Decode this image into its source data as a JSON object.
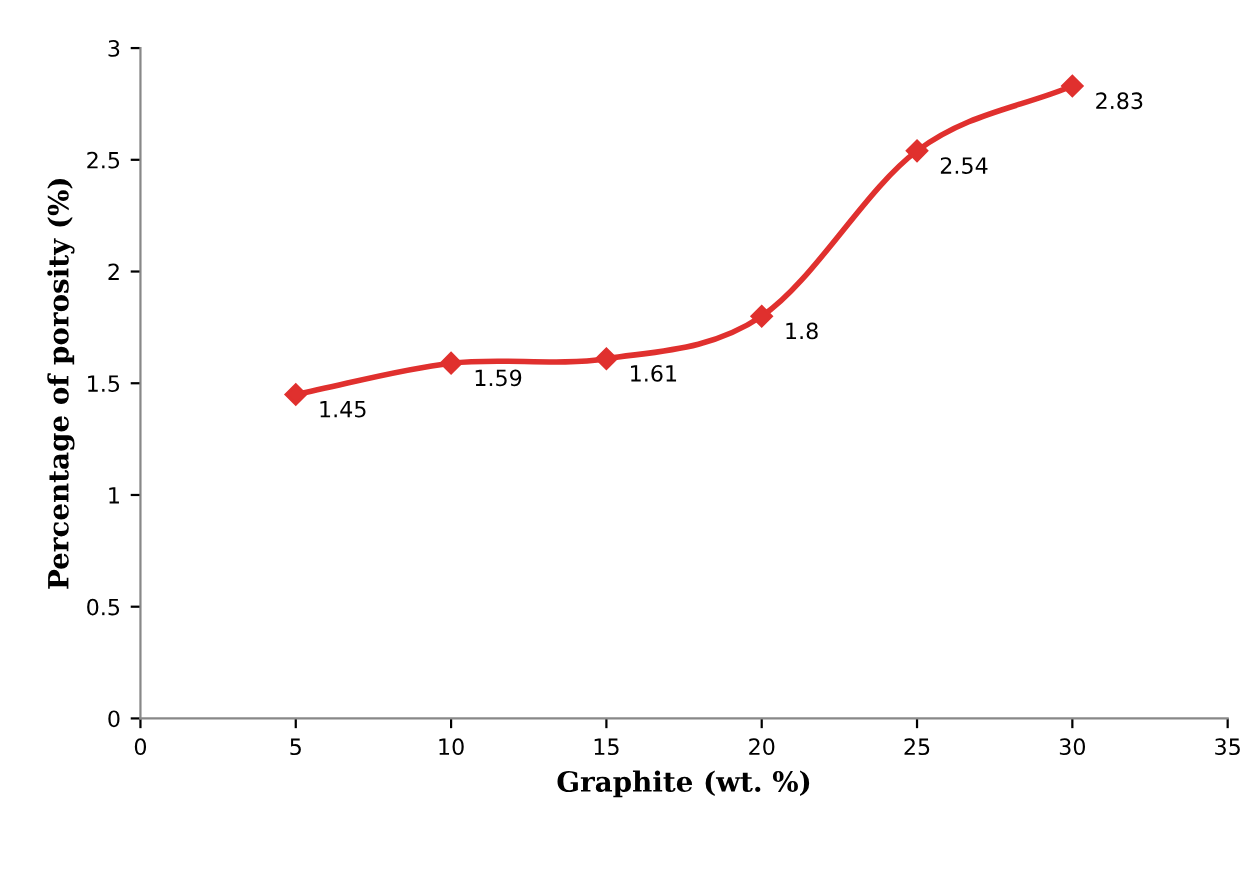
{
  "chart_data": {
    "type": "line",
    "xlabel": "Graphite (wt. %)",
    "ylabel": "Percentage of porosity (%)",
    "x": [
      5,
      10,
      15,
      20,
      25,
      30
    ],
    "series": [
      {
        "color": "#e0302e",
        "values": [
          1.45,
          1.59,
          1.61,
          1.8,
          2.54,
          2.83
        ]
      }
    ],
    "xlim": [
      0,
      35
    ],
    "xticks": [
      0,
      5,
      10,
      15,
      20,
      25,
      30,
      35
    ],
    "ylim": [
      0,
      3
    ],
    "yticks": [
      0,
      0.5,
      1,
      1.5,
      2,
      2.5,
      3
    ],
    "data_labels": true,
    "marker": "diamond",
    "line_style": "solid",
    "grid": false,
    "legend": false
  }
}
